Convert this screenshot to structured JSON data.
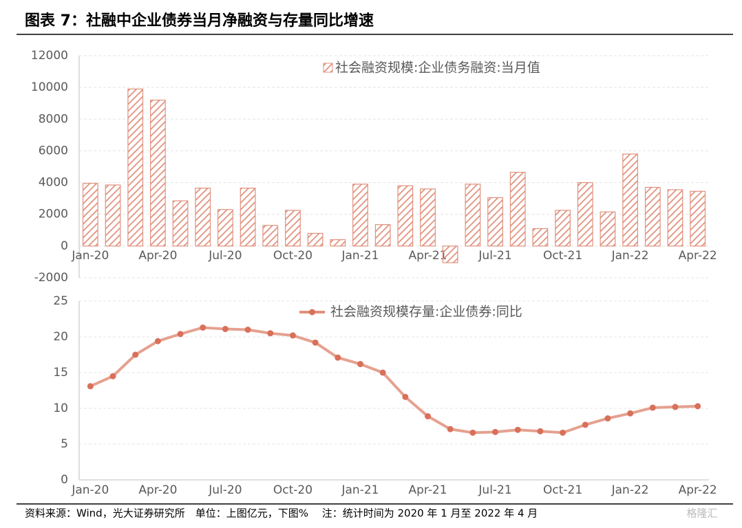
{
  "header": {
    "title": "图表 7：社融中企业债券当月净融资与存量同比增速"
  },
  "chart_data": [
    {
      "type": "bar",
      "categories": [
        "Jan-20",
        null,
        null,
        "Apr-20",
        null,
        null,
        "Jul-20",
        null,
        null,
        "Oct-20",
        null,
        null,
        "Jan-21",
        null,
        null,
        "Apr-21",
        null,
        null,
        "Jul-21",
        null,
        null,
        "Oct-21",
        null,
        null,
        "Jan-22",
        null,
        null,
        "Apr-22"
      ],
      "series": [
        {
          "name": "社会融资规模:企业债务融资:当月值",
          "color": "#e0907c",
          "values": [
            3950,
            3850,
            9900,
            9200,
            2850,
            3650,
            2300,
            3650,
            1300,
            2250,
            800,
            400,
            3900,
            1350,
            3800,
            3600,
            -1050,
            3900,
            3050,
            4650,
            1100,
            2250,
            4000,
            2150,
            5800,
            3700,
            3550,
            3450
          ]
        }
      ],
      "ylim": [
        -2000,
        12000
      ],
      "yticks": [
        -2000,
        0,
        2000,
        4000,
        6000,
        8000,
        10000,
        12000
      ],
      "grid": true
    },
    {
      "type": "line",
      "categories": [
        "Jan-20",
        null,
        null,
        "Apr-20",
        null,
        null,
        "Jul-20",
        null,
        null,
        "Oct-20",
        null,
        null,
        "Jan-21",
        null,
        null,
        "Apr-21",
        null,
        null,
        "Jul-21",
        null,
        null,
        "Oct-21",
        null,
        null,
        "Jan-22",
        null,
        null,
        "Apr-22"
      ],
      "series": [
        {
          "name": "社会融资规模存量:企业债券:同比",
          "color": "#e0907c",
          "values": [
            13.1,
            14.5,
            17.5,
            19.4,
            20.4,
            21.3,
            21.1,
            21.0,
            20.5,
            20.2,
            19.2,
            17.1,
            16.2,
            15.0,
            11.6,
            8.9,
            7.1,
            6.6,
            6.7,
            7.0,
            6.8,
            6.6,
            7.7,
            8.6,
            9.3,
            10.1,
            10.2,
            10.3
          ]
        }
      ],
      "ylim": [
        0,
        25
      ],
      "yticks": [
        0,
        5,
        10,
        15,
        20,
        25
      ],
      "grid": true
    }
  ],
  "footer": {
    "source": "资料来源：Wind，光大证券研究所　单位：上图亿元，下图%　 注：统计时间为 2020 年 1 月至 2022 年 4 月",
    "watermark": "格隆汇"
  }
}
